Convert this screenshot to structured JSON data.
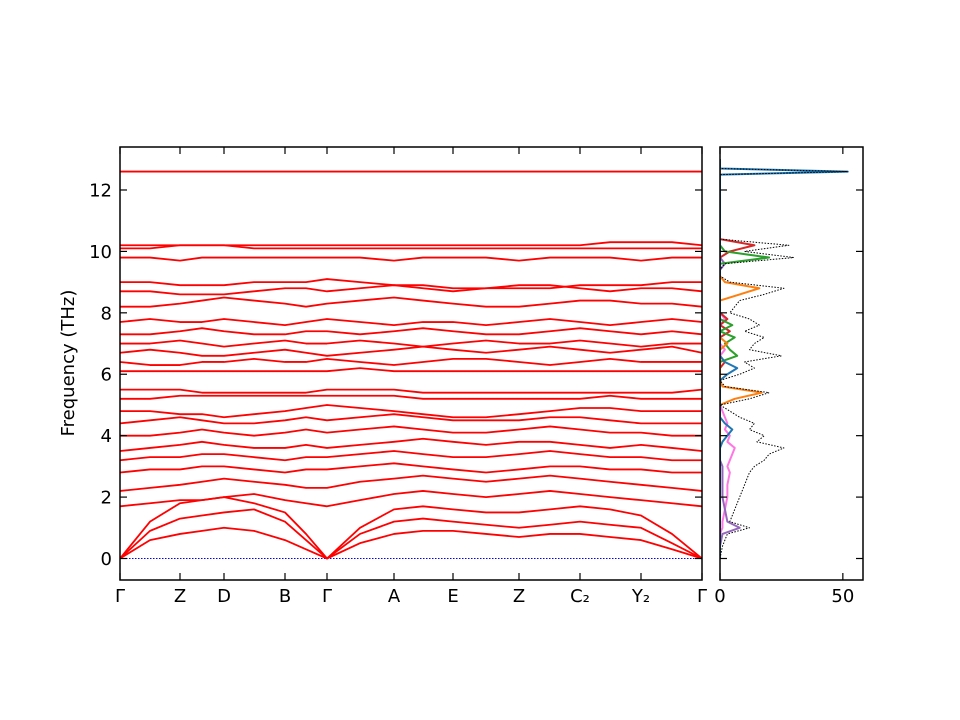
{
  "chart_data": [
    {
      "type": "line",
      "ylabel": "Frequency (THz)",
      "color": "#ff0000",
      "x": [
        0,
        30,
        60,
        82,
        104,
        134,
        165,
        186,
        207,
        240,
        274,
        303,
        333,
        366,
        399,
        430,
        460,
        490,
        521,
        552,
        582
      ],
      "xlim": [
        0,
        582
      ],
      "ylim": [
        -0.7,
        13.4
      ],
      "xticks": [
        {
          "value": 0,
          "label": "Γ"
        },
        {
          "value": 60,
          "label": "Z"
        },
        {
          "value": 104,
          "label": "D"
        },
        {
          "value": 165,
          "label": "B"
        },
        {
          "value": 207,
          "label": "Γ"
        },
        {
          "value": 274,
          "label": "A"
        },
        {
          "value": 333,
          "label": "E"
        },
        {
          "value": 399,
          "label": "Z"
        },
        {
          "value": 460,
          "label": "C₂"
        },
        {
          "value": 521,
          "label": "Y₂"
        },
        {
          "value": 582,
          "label": "Γ"
        }
      ],
      "yticks": [
        0,
        2,
        4,
        6,
        8,
        10,
        12
      ],
      "series": [
        {
          "color": "#0000ff",
          "linestyle": "dotted",
          "values": [
            0,
            0,
            0,
            0,
            0,
            0,
            0,
            0,
            0,
            0,
            0,
            0,
            0,
            0,
            0,
            0,
            0,
            0,
            0,
            0,
            0
          ]
        },
        {
          "values": [
            0,
            0.6,
            0.8,
            0.9,
            1.0,
            0.9,
            0.6,
            0.3,
            0,
            0.5,
            0.8,
            0.9,
            0.9,
            0.8,
            0.7,
            0.8,
            0.8,
            0.7,
            0.6,
            0.3,
            0
          ]
        },
        {
          "values": [
            0,
            0.9,
            1.3,
            1.4,
            1.5,
            1.6,
            1.2,
            0.6,
            0,
            0.8,
            1.2,
            1.3,
            1.2,
            1.1,
            1.0,
            1.1,
            1.2,
            1.1,
            1.0,
            0.5,
            0
          ]
        },
        {
          "values": [
            0,
            1.2,
            1.8,
            1.9,
            2.0,
            1.8,
            1.5,
            0.8,
            0,
            1.0,
            1.6,
            1.7,
            1.6,
            1.5,
            1.5,
            1.6,
            1.7,
            1.6,
            1.4,
            0.8,
            0
          ]
        },
        {
          "values": [
            1.7,
            1.8,
            1.9,
            1.9,
            2.0,
            2.1,
            1.9,
            1.8,
            1.7,
            1.9,
            2.1,
            2.2,
            2.1,
            2.0,
            2.1,
            2.2,
            2.1,
            2.0,
            1.9,
            1.8,
            1.7
          ]
        },
        {
          "values": [
            2.2,
            2.3,
            2.4,
            2.5,
            2.6,
            2.5,
            2.4,
            2.3,
            2.3,
            2.5,
            2.6,
            2.7,
            2.6,
            2.5,
            2.6,
            2.7,
            2.6,
            2.5,
            2.4,
            2.3,
            2.2
          ]
        },
        {
          "values": [
            2.8,
            2.9,
            2.9,
            3.0,
            3.0,
            2.9,
            2.8,
            2.9,
            2.9,
            3.0,
            3.1,
            3.0,
            2.9,
            2.8,
            2.9,
            3.0,
            3.0,
            2.9,
            2.9,
            2.8,
            2.8
          ]
        },
        {
          "values": [
            3.2,
            3.3,
            3.3,
            3.4,
            3.4,
            3.3,
            3.2,
            3.3,
            3.3,
            3.4,
            3.5,
            3.4,
            3.3,
            3.3,
            3.4,
            3.5,
            3.4,
            3.3,
            3.3,
            3.2,
            3.2
          ]
        },
        {
          "values": [
            3.5,
            3.6,
            3.7,
            3.8,
            3.7,
            3.6,
            3.6,
            3.7,
            3.6,
            3.7,
            3.8,
            3.9,
            3.8,
            3.7,
            3.8,
            3.8,
            3.7,
            3.6,
            3.7,
            3.6,
            3.5
          ]
        },
        {
          "values": [
            4.0,
            4.0,
            4.1,
            4.2,
            4.1,
            4.0,
            4.1,
            4.2,
            4.1,
            4.2,
            4.3,
            4.2,
            4.1,
            4.1,
            4.2,
            4.3,
            4.2,
            4.1,
            4.1,
            4.0,
            4.0
          ]
        },
        {
          "values": [
            4.4,
            4.5,
            4.6,
            4.5,
            4.4,
            4.4,
            4.5,
            4.6,
            4.5,
            4.6,
            4.7,
            4.6,
            4.5,
            4.5,
            4.5,
            4.6,
            4.6,
            4.5,
            4.4,
            4.4,
            4.4
          ]
        },
        {
          "values": [
            4.8,
            4.8,
            4.7,
            4.7,
            4.6,
            4.7,
            4.8,
            4.9,
            5.0,
            4.9,
            4.8,
            4.7,
            4.6,
            4.6,
            4.7,
            4.8,
            4.9,
            4.9,
            4.8,
            4.8,
            4.8
          ]
        },
        {
          "values": [
            5.2,
            5.2,
            5.3,
            5.3,
            5.3,
            5.3,
            5.3,
            5.3,
            5.3,
            5.3,
            5.3,
            5.2,
            5.2,
            5.2,
            5.2,
            5.2,
            5.2,
            5.3,
            5.2,
            5.2,
            5.2
          ]
        },
        {
          "values": [
            5.5,
            5.5,
            5.5,
            5.4,
            5.4,
            5.4,
            5.4,
            5.4,
            5.5,
            5.5,
            5.5,
            5.4,
            5.4,
            5.4,
            5.4,
            5.4,
            5.4,
            5.4,
            5.4,
            5.4,
            5.5
          ]
        },
        {
          "values": [
            6.1,
            6.1,
            6.1,
            6.1,
            6.1,
            6.1,
            6.1,
            6.1,
            6.1,
            6.2,
            6.1,
            6.1,
            6.1,
            6.1,
            6.1,
            6.1,
            6.1,
            6.1,
            6.1,
            6.1,
            6.1
          ]
        },
        {
          "values": [
            6.4,
            6.3,
            6.3,
            6.4,
            6.4,
            6.5,
            6.4,
            6.4,
            6.5,
            6.4,
            6.3,
            6.4,
            6.5,
            6.5,
            6.4,
            6.3,
            6.4,
            6.5,
            6.4,
            6.4,
            6.4
          ]
        },
        {
          "values": [
            6.7,
            6.8,
            6.7,
            6.6,
            6.6,
            6.7,
            6.8,
            6.7,
            6.6,
            6.7,
            6.8,
            6.9,
            6.8,
            6.7,
            6.8,
            6.9,
            6.8,
            6.7,
            6.8,
            6.9,
            6.7
          ]
        },
        {
          "values": [
            7.0,
            7.0,
            7.1,
            7.0,
            6.9,
            7.0,
            7.1,
            7.0,
            7.0,
            7.1,
            7.0,
            6.9,
            7.0,
            7.1,
            7.0,
            7.0,
            7.1,
            7.0,
            6.9,
            7.0,
            7.0
          ]
        },
        {
          "values": [
            7.3,
            7.3,
            7.4,
            7.5,
            7.4,
            7.3,
            7.3,
            7.4,
            7.4,
            7.3,
            7.4,
            7.5,
            7.4,
            7.3,
            7.3,
            7.4,
            7.5,
            7.4,
            7.3,
            7.4,
            7.3
          ]
        },
        {
          "values": [
            7.7,
            7.8,
            7.7,
            7.7,
            7.8,
            7.7,
            7.6,
            7.7,
            7.8,
            7.7,
            7.6,
            7.7,
            7.7,
            7.6,
            7.7,
            7.8,
            7.7,
            7.6,
            7.7,
            7.8,
            7.7
          ]
        },
        {
          "values": [
            8.2,
            8.2,
            8.3,
            8.4,
            8.5,
            8.4,
            8.3,
            8.2,
            8.3,
            8.4,
            8.5,
            8.4,
            8.3,
            8.2,
            8.2,
            8.3,
            8.4,
            8.4,
            8.3,
            8.3,
            8.2
          ]
        },
        {
          "values": [
            8.7,
            8.7,
            8.6,
            8.6,
            8.6,
            8.7,
            8.8,
            8.8,
            8.7,
            8.8,
            8.9,
            8.8,
            8.7,
            8.8,
            8.9,
            8.9,
            8.8,
            8.7,
            8.8,
            8.8,
            8.7
          ]
        },
        {
          "values": [
            9.0,
            9.0,
            8.9,
            8.9,
            8.9,
            9.0,
            9.0,
            9.0,
            9.1,
            9.0,
            8.9,
            8.9,
            8.8,
            8.8,
            8.8,
            8.8,
            8.9,
            8.9,
            8.9,
            9.0,
            9.0
          ]
        },
        {
          "values": [
            9.8,
            9.8,
            9.7,
            9.8,
            9.8,
            9.8,
            9.8,
            9.8,
            9.8,
            9.8,
            9.7,
            9.8,
            9.8,
            9.8,
            9.7,
            9.8,
            9.8,
            9.8,
            9.7,
            9.8,
            9.8
          ]
        },
        {
          "values": [
            10.1,
            10.1,
            10.2,
            10.2,
            10.2,
            10.1,
            10.1,
            10.1,
            10.1,
            10.1,
            10.1,
            10.1,
            10.1,
            10.1,
            10.1,
            10.1,
            10.1,
            10.1,
            10.1,
            10.1,
            10.1
          ]
        },
        {
          "values": [
            10.2,
            10.2,
            10.2,
            10.2,
            10.2,
            10.2,
            10.2,
            10.2,
            10.2,
            10.2,
            10.2,
            10.2,
            10.2,
            10.2,
            10.2,
            10.2,
            10.2,
            10.3,
            10.3,
            10.3,
            10.2
          ]
        },
        {
          "values": [
            12.6,
            12.6,
            12.6,
            12.6,
            12.6,
            12.6,
            12.6,
            12.6,
            12.6,
            12.6,
            12.6,
            12.6,
            12.6,
            12.6,
            12.6,
            12.6,
            12.6,
            12.6,
            12.6,
            12.6,
            12.6
          ]
        }
      ]
    },
    {
      "type": "line",
      "orientation": "horizontal",
      "frequencies": [
        0,
        0.4,
        0.8,
        1.0,
        1.2,
        1.6,
        2.0,
        2.4,
        2.8,
        3.0,
        3.2,
        3.4,
        3.6,
        3.8,
        4.0,
        4.2,
        4.4,
        4.6,
        4.8,
        5.0,
        5.2,
        5.4,
        5.6,
        5.8,
        6.0,
        6.2,
        6.4,
        6.6,
        6.8,
        7.0,
        7.2,
        7.4,
        7.6,
        7.8,
        8.0,
        8.2,
        8.4,
        8.6,
        8.8,
        9.0,
        9.2,
        9.4,
        9.6,
        9.8,
        10.0,
        10.2,
        10.4,
        11,
        12.5,
        12.6,
        12.7,
        13.0
      ],
      "xlim": [
        0,
        58.2
      ],
      "ylim": [
        -0.7,
        13.4
      ],
      "xticks": [
        0,
        50
      ],
      "yticks": [
        0,
        2,
        4,
        6,
        8,
        10,
        12
      ],
      "series": [
        {
          "color": "#ff77e3",
          "values": [
            0,
            0,
            0,
            1,
            1,
            2,
            3,
            3,
            4,
            3,
            4,
            5,
            6,
            3,
            4,
            2,
            3,
            2,
            1,
            0,
            0,
            0,
            0,
            0,
            0,
            0,
            0,
            0,
            2,
            0,
            0,
            0,
            0,
            2,
            0,
            0,
            0,
            0,
            0,
            0,
            0,
            0,
            0,
            0,
            0,
            0,
            0,
            0,
            0,
            0,
            0,
            0
          ]
        },
        {
          "color": "#9467bd",
          "values": [
            0,
            0,
            1,
            8,
            3,
            2,
            1,
            1,
            1,
            1,
            0,
            0,
            0,
            0,
            0,
            0,
            0,
            0,
            0,
            0,
            0,
            0,
            0,
            0,
            0,
            0,
            0,
            0,
            0,
            0,
            0,
            0,
            0,
            0,
            0,
            0,
            0,
            0,
            0,
            0,
            0,
            0,
            2,
            0,
            0,
            0,
            0,
            0,
            0,
            0,
            0,
            0
          ]
        },
        {
          "color": "#d62728",
          "values": [
            0,
            0,
            0,
            0,
            0,
            0,
            0,
            0,
            0,
            0,
            0,
            0,
            0,
            0,
            0,
            0,
            0,
            0,
            0,
            0,
            0,
            0,
            0,
            0,
            0,
            0,
            2,
            0,
            0,
            0,
            0,
            4,
            0,
            3,
            0,
            0,
            0,
            0,
            0,
            0,
            0,
            0,
            0,
            0,
            4,
            14,
            0,
            0,
            0,
            0,
            0,
            0
          ]
        },
        {
          "color": "#2ca02c",
          "values": [
            0,
            0,
            0,
            0,
            0,
            0,
            0,
            0,
            0,
            0,
            0,
            0,
            0,
            0,
            0,
            0,
            0,
            0,
            0,
            0,
            0,
            0,
            0,
            0,
            0,
            0,
            0,
            7,
            4,
            2,
            6,
            0,
            5,
            0,
            0,
            0,
            0,
            0,
            0,
            0,
            0,
            0,
            0,
            20,
            2,
            0,
            0,
            0,
            0,
            0,
            0,
            0
          ]
        },
        {
          "color": "#ff7f0e",
          "values": [
            0,
            0,
            0,
            0,
            0,
            0,
            0,
            0,
            0,
            0,
            0,
            0,
            0,
            0,
            0,
            0,
            0,
            0,
            0,
            0,
            6,
            17,
            1,
            0,
            0,
            0,
            0,
            0,
            0,
            3,
            0,
            0,
            0,
            0,
            0,
            0,
            0,
            8,
            16,
            2,
            0,
            0,
            0,
            0,
            0,
            0,
            0,
            0,
            0,
            0,
            0,
            0
          ]
        },
        {
          "color": "#1f77b4",
          "values": [
            0,
            0,
            0,
            0,
            0,
            0,
            0,
            0,
            0,
            0,
            0,
            0,
            0,
            1,
            3,
            5,
            2,
            0,
            0,
            0,
            0,
            0,
            0,
            0,
            3,
            7,
            2,
            0,
            0,
            0,
            0,
            0,
            0,
            0,
            0,
            0,
            0,
            0,
            0,
            0,
            0,
            0,
            0,
            0,
            0,
            0,
            0,
            0,
            0,
            52,
            0,
            0
          ]
        },
        {
          "color": "#000000",
          "linestyle": "dotted",
          "values": [
            0,
            1,
            3,
            12,
            4,
            6,
            8,
            10,
            12,
            14,
            18,
            20,
            26,
            15,
            18,
            12,
            14,
            8,
            4,
            0,
            12,
            20,
            2,
            0,
            8,
            14,
            10,
            25,
            12,
            14,
            18,
            10,
            16,
            12,
            4,
            6,
            8,
            18,
            26,
            4,
            0,
            0,
            2,
            30,
            10,
            28,
            0,
            0,
            0,
            52,
            0,
            0
          ]
        }
      ]
    }
  ]
}
